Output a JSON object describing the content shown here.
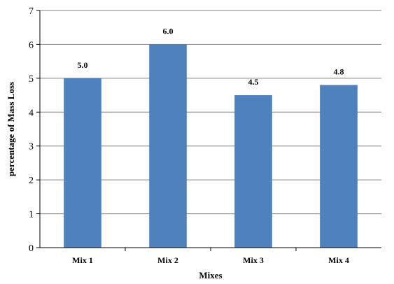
{
  "chart_data": {
    "type": "bar",
    "title": "",
    "xlabel": "Mixes",
    "ylabel": "percentage of Mass Loss",
    "categories": [
      "Mix 1",
      "Mix 2",
      "Mix 3",
      "Mix 4"
    ],
    "values": [
      5.0,
      6.0,
      4.5,
      4.8
    ],
    "data_labels": [
      "5.0",
      "6.0",
      "4.5",
      "4.8"
    ],
    "ylim": [
      0,
      7
    ],
    "yticks": [
      0,
      1,
      2,
      3,
      4,
      5,
      6,
      7
    ],
    "ytick_labels": [
      "0",
      "1",
      "2",
      "3",
      "4",
      "5",
      "6",
      "7"
    ],
    "grid": true,
    "legend": "none",
    "bar_color": "#4F81BD",
    "grid_color": "#808080"
  }
}
